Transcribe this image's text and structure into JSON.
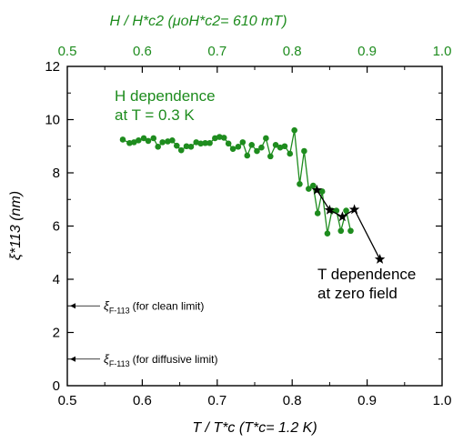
{
  "chart_data": {
    "type": "scatter",
    "xlabel": "T / T*c (T*c= 1.2 K)",
    "xlim": [
      0.5,
      1.0
    ],
    "xticks": [
      "0.5",
      "0.6",
      "0.7",
      "0.8",
      "0.9",
      "1.0"
    ],
    "top_axis_label": "H / H*c2 (μoH*c2= 610 mT)",
    "top_xticks": [
      "0.5",
      "0.6",
      "0.7",
      "0.8",
      "0.9",
      "1.0"
    ],
    "ylabel": "ξ*113 (nm)",
    "ylim": [
      0,
      12
    ],
    "yticks": [
      "0",
      "2",
      "4",
      "6",
      "8",
      "10",
      "12"
    ],
    "grid": false,
    "series": [
      {
        "name": "H dependence at T = 0.3 K",
        "color": "#1e8c1e",
        "marker": "circle",
        "connected": true,
        "x": [
          0.574,
          0.583,
          0.589,
          0.595,
          0.602,
          0.608,
          0.615,
          0.621,
          0.627,
          0.634,
          0.64,
          0.646,
          0.652,
          0.659,
          0.665,
          0.672,
          0.678,
          0.684,
          0.69,
          0.697,
          0.703,
          0.709,
          0.715,
          0.721,
          0.728,
          0.734,
          0.74,
          0.746,
          0.753,
          0.759,
          0.765,
          0.771,
          0.778,
          0.784,
          0.79,
          0.797,
          0.803,
          0.81,
          0.816,
          0.822,
          0.828,
          0.834,
          0.84,
          0.847,
          0.853,
          0.859,
          0.865,
          0.872,
          0.878
        ],
        "y": [
          9.25,
          9.12,
          9.15,
          9.22,
          9.3,
          9.2,
          9.3,
          8.98,
          9.15,
          9.18,
          9.22,
          9.02,
          8.85,
          9.0,
          8.98,
          9.15,
          9.1,
          9.12,
          9.12,
          9.3,
          9.35,
          9.32,
          9.1,
          8.9,
          8.98,
          9.15,
          8.65,
          9.05,
          8.82,
          8.95,
          9.3,
          8.62,
          9.05,
          8.95,
          9.0,
          8.72,
          9.6,
          7.58,
          8.82,
          7.4,
          7.52,
          6.48,
          7.3,
          5.72,
          6.58,
          6.58,
          5.82,
          6.58,
          5.82
        ]
      },
      {
        "name": "T dependence at zero field",
        "color": "#000000",
        "marker": "star",
        "connected": true,
        "x": [
          0.833,
          0.85,
          0.867,
          0.883,
          0.917
        ],
        "y": [
          7.35,
          6.6,
          6.35,
          6.62,
          4.75
        ]
      }
    ],
    "reference_lines": [
      {
        "label": "ξF-113 (for clean limit)",
        "symbol": "ξ",
        "subscript": "F-113",
        "note": "(for clean limit)",
        "y": 3.0
      },
      {
        "label": "ξF-113 (for diffusive limit)",
        "symbol": "ξ",
        "subscript": "F-113",
        "note": "(for diffusive limit)",
        "y": 1.0
      }
    ],
    "annotations": [
      {
        "id": "h-dep",
        "lines": [
          "H dependence",
          "at T = 0.3 K"
        ],
        "color": "#1e8c1e"
      },
      {
        "id": "t-dep",
        "lines": [
          "T dependence",
          "at zero field"
        ],
        "color": "#000000"
      }
    ]
  }
}
